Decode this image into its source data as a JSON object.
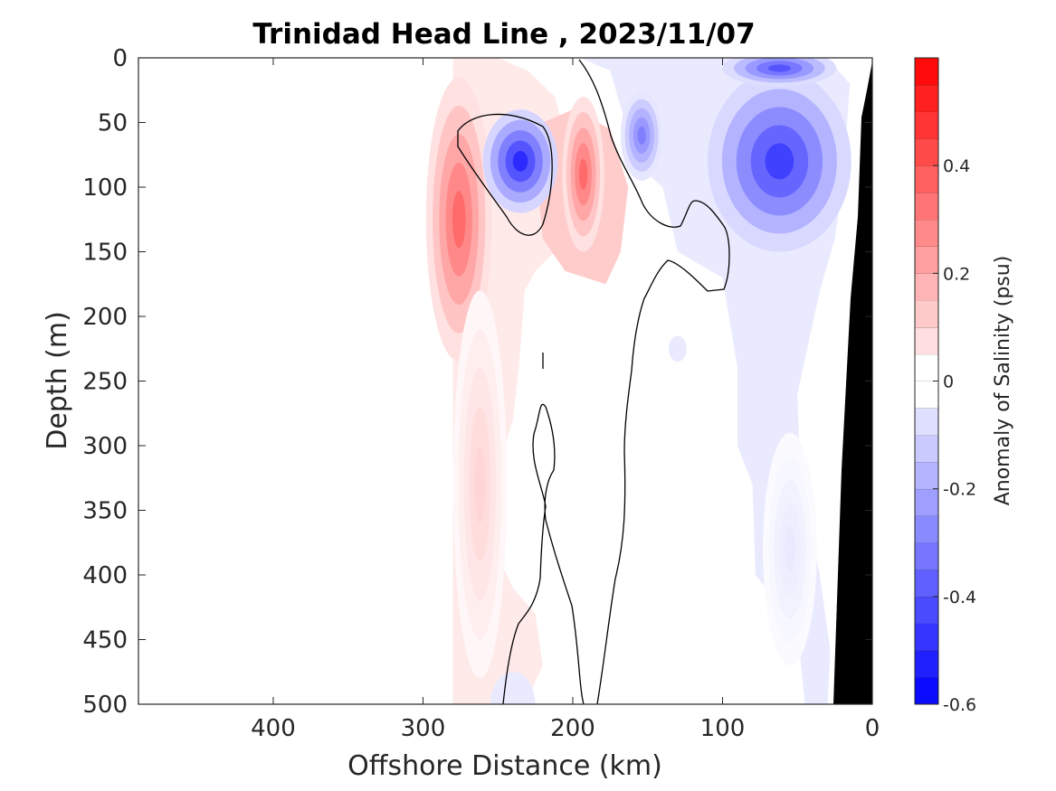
{
  "chart_data": {
    "type": "heatmap",
    "title": "Trinidad Head Line , 2023/11/07",
    "xlabel": "Offshore Distance (km)",
    "ylabel": "Depth (m)",
    "xlim": [
      490,
      0
    ],
    "ylim": [
      0,
      500
    ],
    "x_reversed": true,
    "y_reversed": true,
    "x_ticks": [
      400,
      300,
      200,
      100,
      0
    ],
    "y_ticks": [
      0,
      50,
      100,
      150,
      200,
      250,
      300,
      350,
      400,
      450,
      500
    ],
    "data_extent_km": [
      280,
      0
    ],
    "colorbar": {
      "label": "Anomaly of Salinity (psu)",
      "range": [
        -0.6,
        0.6
      ],
      "step": 0.05,
      "ticks": [
        -0.6,
        -0.4,
        -0.2,
        0,
        0.2,
        0.4
      ],
      "tick_labels": [
        "-0.6",
        "-0.4",
        "-0.2",
        "0",
        "0.2",
        "0.4"
      ],
      "colormap": "blue-white-red",
      "neg_color": "#0000ff",
      "pos_color": "#ff0000",
      "zero_color": "#ffffff"
    },
    "features": [
      {
        "kind": "positive anomaly",
        "x": 276,
        "y": 125,
        "peak": 0.35
      },
      {
        "kind": "negative anomaly",
        "x": 235,
        "y": 80,
        "peak": -0.5
      },
      {
        "kind": "positive anomaly",
        "x": 193,
        "y": 90,
        "peak": 0.35
      },
      {
        "kind": "negative anomaly",
        "x": 154,
        "y": 60,
        "peak": -0.3
      },
      {
        "kind": "negative anomaly",
        "x": 62,
        "y": 80,
        "peak": -0.45
      },
      {
        "kind": "negative anomaly",
        "x": 62,
        "y": 8,
        "peak": -0.4
      },
      {
        "kind": "positive anomaly",
        "x": 262,
        "y": 330,
        "peak": 0.1
      },
      {
        "kind": "negative anomaly",
        "x": 55,
        "y": 380,
        "peak": -0.05
      }
    ],
    "zero_contour_present": true,
    "seafloor_mask_color": "#000000",
    "grid": false
  }
}
